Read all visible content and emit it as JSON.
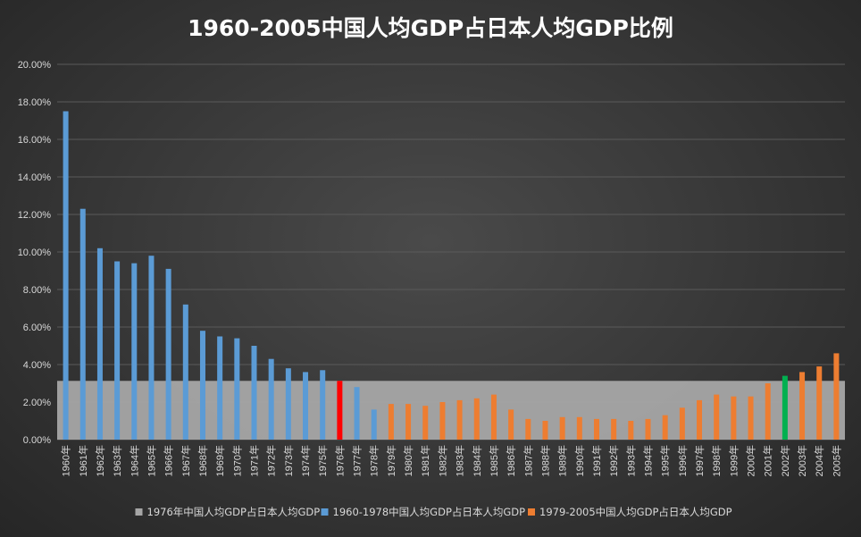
{
  "chart_data": {
    "type": "bar",
    "title": "1960-2005中国人均GDP占日本人均GDP比例",
    "xlabel": "",
    "ylabel": "",
    "ylim": [
      0,
      0.2
    ],
    "y_ticks": [
      "0.00%",
      "2.00%",
      "4.00%",
      "6.00%",
      "8.00%",
      "10.00%",
      "12.00%",
      "14.00%",
      "16.00%",
      "18.00%",
      "20.00%"
    ],
    "categories": [
      "1960年",
      "1961年",
      "1962年",
      "1963年",
      "1964年",
      "1965年",
      "1966年",
      "1967年",
      "1968年",
      "1969年",
      "1970年",
      "1971年",
      "1972年",
      "1973年",
      "1974年",
      "1975年",
      "1976年",
      "1977年",
      "1978年",
      "1979年",
      "1980年",
      "1981年",
      "1982年",
      "1983年",
      "1984年",
      "1985年",
      "1986年",
      "1987年",
      "1988年",
      "1989年",
      "1990年",
      "1991年",
      "1992年",
      "1993年",
      "1994年",
      "1995年",
      "1996年",
      "1997年",
      "1998年",
      "1999年",
      "2000年",
      "2001年",
      "2002年",
      "2003年",
      "2004年",
      "2005年"
    ],
    "series": [
      {
        "name": "1976年中国人均GDP占日本人均GDP",
        "color": "#a6a6a6",
        "constant_value": 0.0313
      },
      {
        "name": "1960-1978中国人均GDP占日本人均GDP",
        "color": "#5b9bd5",
        "values": [
          0.175,
          0.123,
          0.102,
          0.095,
          0.094,
          0.098,
          0.091,
          0.072,
          0.058,
          0.055,
          0.054,
          0.05,
          0.043,
          0.038,
          0.036,
          0.037,
          0.0313,
          0.028,
          0.016,
          null,
          null,
          null,
          null,
          null,
          null,
          null,
          null,
          null,
          null,
          null,
          null,
          null,
          null,
          null,
          null,
          null,
          null,
          null,
          null,
          null,
          null,
          null,
          null,
          null,
          null,
          null
        ]
      },
      {
        "name": "1979-2005中国人均GDP占日本人均GDP",
        "color": "#ed7d31",
        "values": [
          null,
          null,
          null,
          null,
          null,
          null,
          null,
          null,
          null,
          null,
          null,
          null,
          null,
          null,
          null,
          null,
          null,
          null,
          null,
          0.019,
          0.019,
          0.018,
          0.02,
          0.021,
          0.022,
          0.024,
          0.016,
          0.011,
          0.01,
          0.012,
          0.012,
          0.011,
          0.011,
          0.01,
          0.011,
          0.013,
          0.017,
          0.021,
          0.024,
          0.023,
          0.023,
          0.03,
          0.034,
          0.036,
          0.039,
          0.046
        ]
      }
    ],
    "highlight_colors": {
      "1976年": "#ff0000",
      "2002年": "#00b050"
    },
    "grid": true,
    "legend_position": "bottom"
  }
}
